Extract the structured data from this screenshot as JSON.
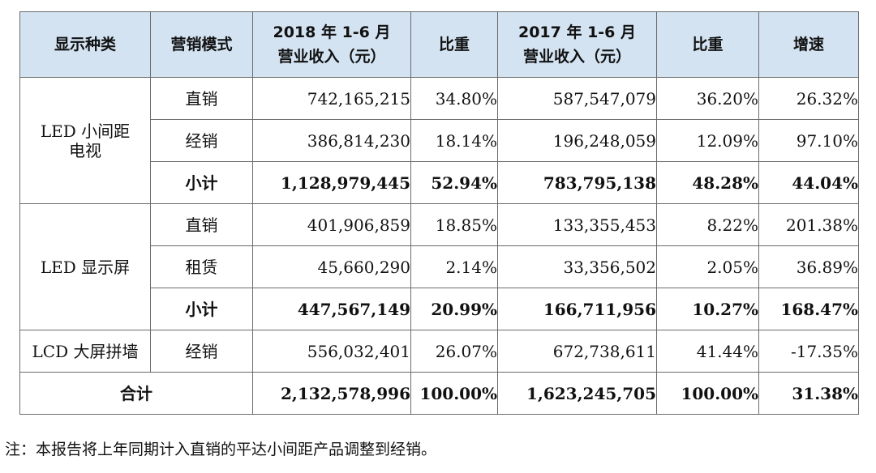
{
  "header": {
    "category": "显示种类",
    "mode": "营销模式",
    "rev2018_line1": "2018 年 1-6 月",
    "rev2018_line2": "营业收入（元）",
    "share2018": "比重",
    "rev2017_line1": "2017 年 1-6 月",
    "rev2017_line2": "营业收入（元）",
    "share2017": "比重",
    "growth": "增速"
  },
  "groups": [
    {
      "category_lines": [
        "LED 小间距",
        "电视"
      ],
      "rows": [
        {
          "mode": "直销",
          "rev2018": "742,165,215",
          "share2018": "34.80%",
          "rev2017": "587,547,079",
          "share2017": "36.20%",
          "growth": "26.32%"
        },
        {
          "mode": "经销",
          "rev2018": "386,814,230",
          "share2018": "18.14%",
          "rev2017": "196,248,059",
          "share2017": "12.09%",
          "growth": "97.10%"
        },
        {
          "mode": "小计",
          "rev2018": "1,128,979,445",
          "share2018": "52.94%",
          "rev2017": "783,795,138",
          "share2017": "48.28%",
          "growth": "44.04%"
        }
      ]
    },
    {
      "category_lines": [
        "LED 显示屏"
      ],
      "rows": [
        {
          "mode": "直销",
          "rev2018": "401,906,859",
          "share2018": "18.85%",
          "rev2017": "133,355,453",
          "share2017": "8.22%",
          "growth": "201.38%"
        },
        {
          "mode": "租赁",
          "rev2018": "45,660,290",
          "share2018": "2.14%",
          "rev2017": "33,356,502",
          "share2017": "2.05%",
          "growth": "36.89%"
        },
        {
          "mode": "小计",
          "rev2018": "447,567,149",
          "share2018": "20.99%",
          "rev2017": "166,711,956",
          "share2017": "10.27%",
          "growth": "168.47%"
        }
      ]
    },
    {
      "category_lines": [
        "LCD 大屏拼墙"
      ],
      "rows": [
        {
          "mode": "经销",
          "rev2018": "556,032,401",
          "share2018": "26.07%",
          "rev2017": "672,738,611",
          "share2017": "41.44%",
          "growth": "-17.35%"
        }
      ]
    }
  ],
  "total": {
    "label": "合计",
    "rev2018": "2,132,578,996",
    "share2018": "100.00%",
    "rev2017": "1,623,245,705",
    "share2017": "100.00%",
    "growth": "31.38%"
  },
  "note": "注：本报告将上年同期计入直销的平达小间距产品调整到经销。",
  "colors": {
    "header_bg": "#d4e3f2",
    "border": "#6b6b6b"
  }
}
